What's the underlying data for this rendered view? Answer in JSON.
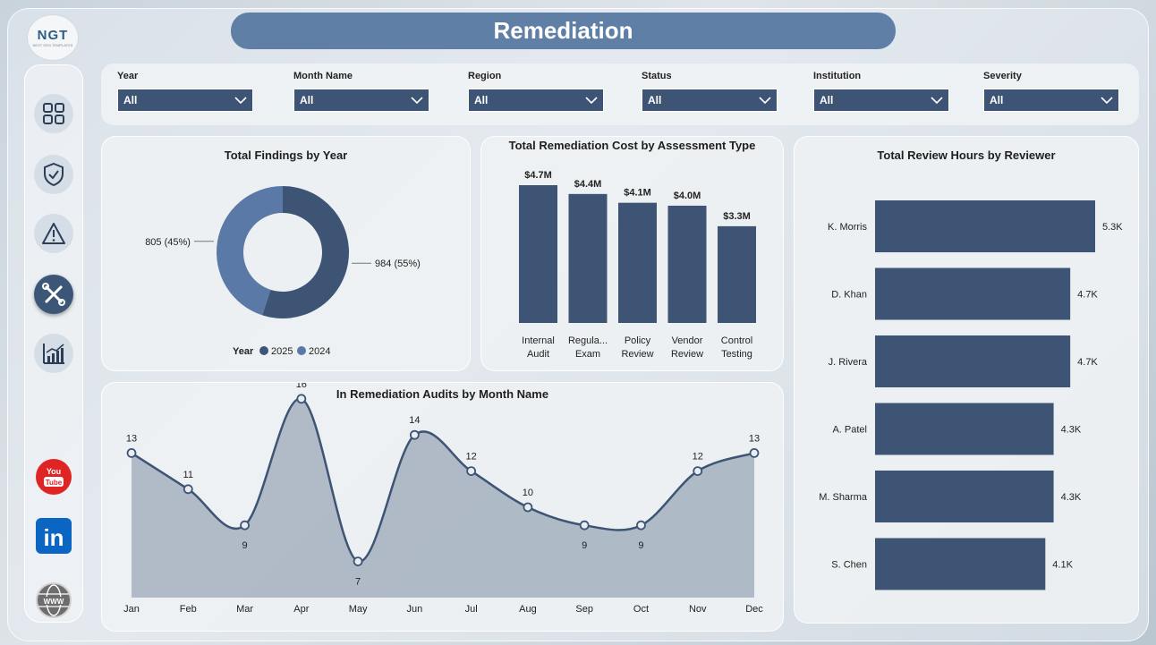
{
  "header": {
    "title": "Remediation",
    "logo_text": "NGT",
    "logo_sub": "NEXT GEN TEMPLATES"
  },
  "sidebar": {
    "items": [
      {
        "icon": "grid-icon"
      },
      {
        "icon": "shield-check-icon"
      },
      {
        "icon": "warning-icon"
      },
      {
        "icon": "remediation-tools-icon",
        "active": true
      },
      {
        "icon": "bar-chart-icon"
      }
    ],
    "social": [
      "youtube-icon",
      "linkedin-icon",
      "web-icon"
    ],
    "youtube_text": "You Tube",
    "linkedin_text": "in",
    "web_text": "WWW"
  },
  "filters": [
    {
      "label": "Year",
      "value": "All"
    },
    {
      "label": "Month Name",
      "value": "All"
    },
    {
      "label": "Region",
      "value": "All"
    },
    {
      "label": "Status",
      "value": "All"
    },
    {
      "label": "Institution",
      "value": "All"
    },
    {
      "label": "Severity",
      "value": "All"
    }
  ],
  "donut": {
    "title": "Total Findings by Year",
    "legend_title": "Year",
    "slices": [
      {
        "name": "2025",
        "value": 984,
        "label": "984 (55%)",
        "color": "#3d5475"
      },
      {
        "name": "2024",
        "value": 805,
        "label": "805 (45%)",
        "color": "#5a79a6"
      }
    ]
  },
  "cost": {
    "title": "Total Remediation Cost by Assessment Type",
    "categories": [
      [
        "Internal",
        "Audit"
      ],
      [
        "Regula...",
        "Exam"
      ],
      [
        "Policy",
        "Review"
      ],
      [
        "Vendor",
        "Review"
      ],
      [
        "Control",
        "Testing"
      ]
    ],
    "values": [
      4.7,
      4.4,
      4.1,
      4.0,
      3.3
    ],
    "labels": [
      "$4.7M",
      "$4.4M",
      "$4.1M",
      "$4.0M",
      "$3.3M"
    ]
  },
  "reviewers": {
    "title": "Total Review Hours by Reviewer",
    "names": [
      "K. Morris",
      "D. Khan",
      "J. Rivera",
      "A. Patel",
      "M. Sharma",
      "S. Chen"
    ],
    "values": [
      5.3,
      4.7,
      4.7,
      4.3,
      4.3,
      4.1
    ],
    "labels": [
      "5.3K",
      "4.7K",
      "4.7K",
      "4.3K",
      "4.3K",
      "4.1K"
    ]
  },
  "monthly": {
    "title": "In Remediation Audits by Month Name",
    "months": [
      "Jan",
      "Feb",
      "Mar",
      "Apr",
      "May",
      "Jun",
      "Jul",
      "Aug",
      "Sep",
      "Oct",
      "Nov",
      "Dec"
    ],
    "values": [
      13,
      11,
      9,
      16,
      7,
      14,
      12,
      10,
      9,
      9,
      12,
      13
    ]
  },
  "chart_data": [
    {
      "type": "pie",
      "title": "Total Findings by Year",
      "categories": [
        "2025",
        "2024"
      ],
      "values": [
        984,
        805
      ],
      "legend": "Year"
    },
    {
      "type": "bar",
      "title": "Total Remediation Cost by Assessment Type",
      "categories": [
        "Internal Audit",
        "Regula... Exam",
        "Policy Review",
        "Vendor Review",
        "Control Testing"
      ],
      "values": [
        4.7,
        4.4,
        4.1,
        4.0,
        3.3
      ],
      "unit": "$M"
    },
    {
      "type": "bar",
      "orientation": "horizontal",
      "title": "Total Review Hours by Reviewer",
      "categories": [
        "K. Morris",
        "D. Khan",
        "J. Rivera",
        "A. Patel",
        "M. Sharma",
        "S. Chen"
      ],
      "values": [
        5.3,
        4.7,
        4.7,
        4.3,
        4.3,
        4.1
      ],
      "unit": "K"
    },
    {
      "type": "area",
      "title": "In Remediation Audits by Month Name",
      "x": [
        "Jan",
        "Feb",
        "Mar",
        "Apr",
        "May",
        "Jun",
        "Jul",
        "Aug",
        "Sep",
        "Oct",
        "Nov",
        "Dec"
      ],
      "values": [
        13,
        11,
        9,
        16,
        7,
        14,
        12,
        10,
        9,
        9,
        12,
        13
      ]
    }
  ]
}
